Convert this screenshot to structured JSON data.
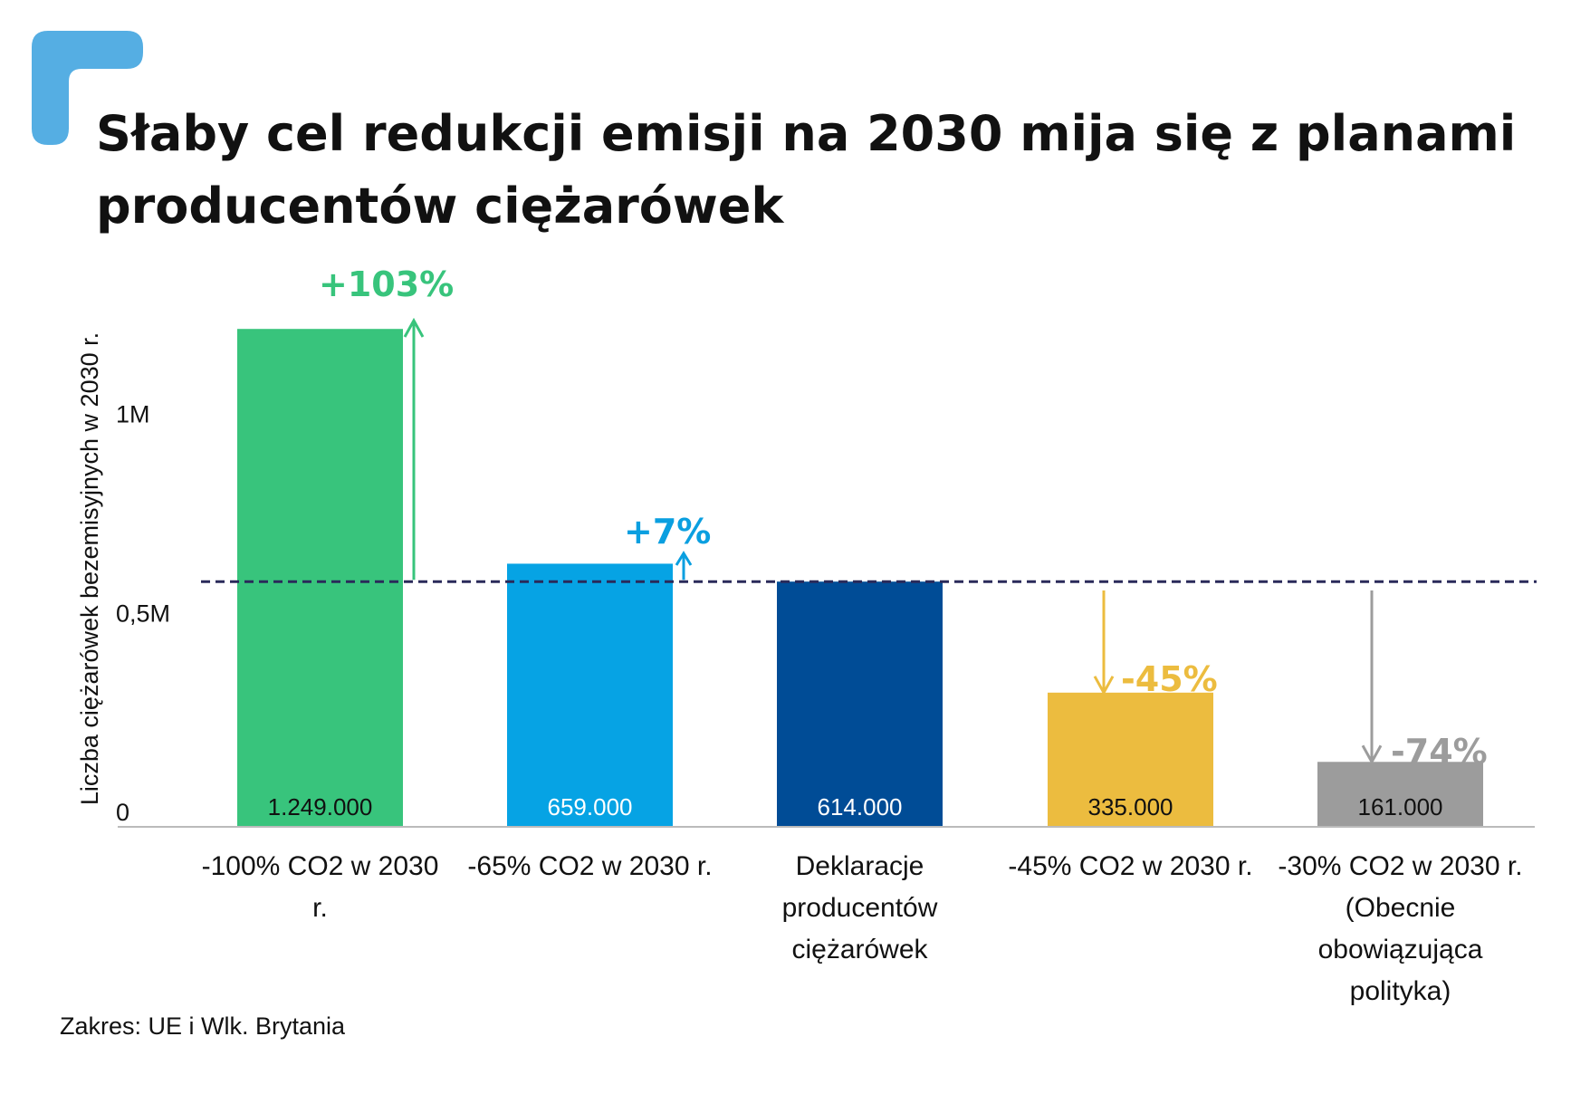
{
  "title_line1": "Słaby cel redukcji emisji na 2030 mija się z planami",
  "title_line2": "producentów ciężarówek",
  "source": "Zakres: UE i Wlk. Brytania",
  "colors": {
    "accent_bracket": "#55aee3",
    "reference_line": "#2a2a5a",
    "axis": "#bbbbbb"
  },
  "chart_data": {
    "type": "bar",
    "title": "Słaby cel redukcji emisji na 2030 mija się z planami producentów ciężarówek",
    "xlabel": "",
    "ylabel": "Liczba ciężarówek bezemisyjnych w 2030 r.",
    "ylim": [
      0,
      1320000
    ],
    "yticks": [
      {
        "value": 0,
        "label": "0"
      },
      {
        "value": 500000,
        "label": "0,5M"
      },
      {
        "value": 1000000,
        "label": "1M"
      }
    ],
    "reference_value": 614000,
    "categories": [
      [
        "-100% CO2 w 2030",
        "r."
      ],
      [
        "-65% CO2 w 2030 r."
      ],
      [
        "Deklaracje",
        "producentów",
        "ciężarówek"
      ],
      [
        "-45% CO2 w 2030 r."
      ],
      [
        "-30% CO2 w 2030 r.",
        "(Obecnie",
        "obowiązująca",
        "polityka)"
      ]
    ],
    "values": [
      1249000,
      659000,
      614000,
      335000,
      161000
    ],
    "value_labels": [
      "1.249.000",
      "659.000",
      "614.000",
      "335.000",
      "161.000"
    ],
    "bar_colors": [
      "#38c47c",
      "#06a3e4",
      "#004c96",
      "#ecbc3f",
      "#9c9c9c"
    ],
    "value_label_colors": [
      "#111111",
      "#ffffff",
      "#ffffff",
      "#111111",
      "#111111"
    ],
    "changes": [
      "+103%",
      "+7%",
      "",
      "-45%",
      "-74%"
    ],
    "change_colors": [
      "#38c47c",
      "#0a9fe0",
      "",
      "#ecbc3f",
      "#9c9c9c"
    ]
  }
}
